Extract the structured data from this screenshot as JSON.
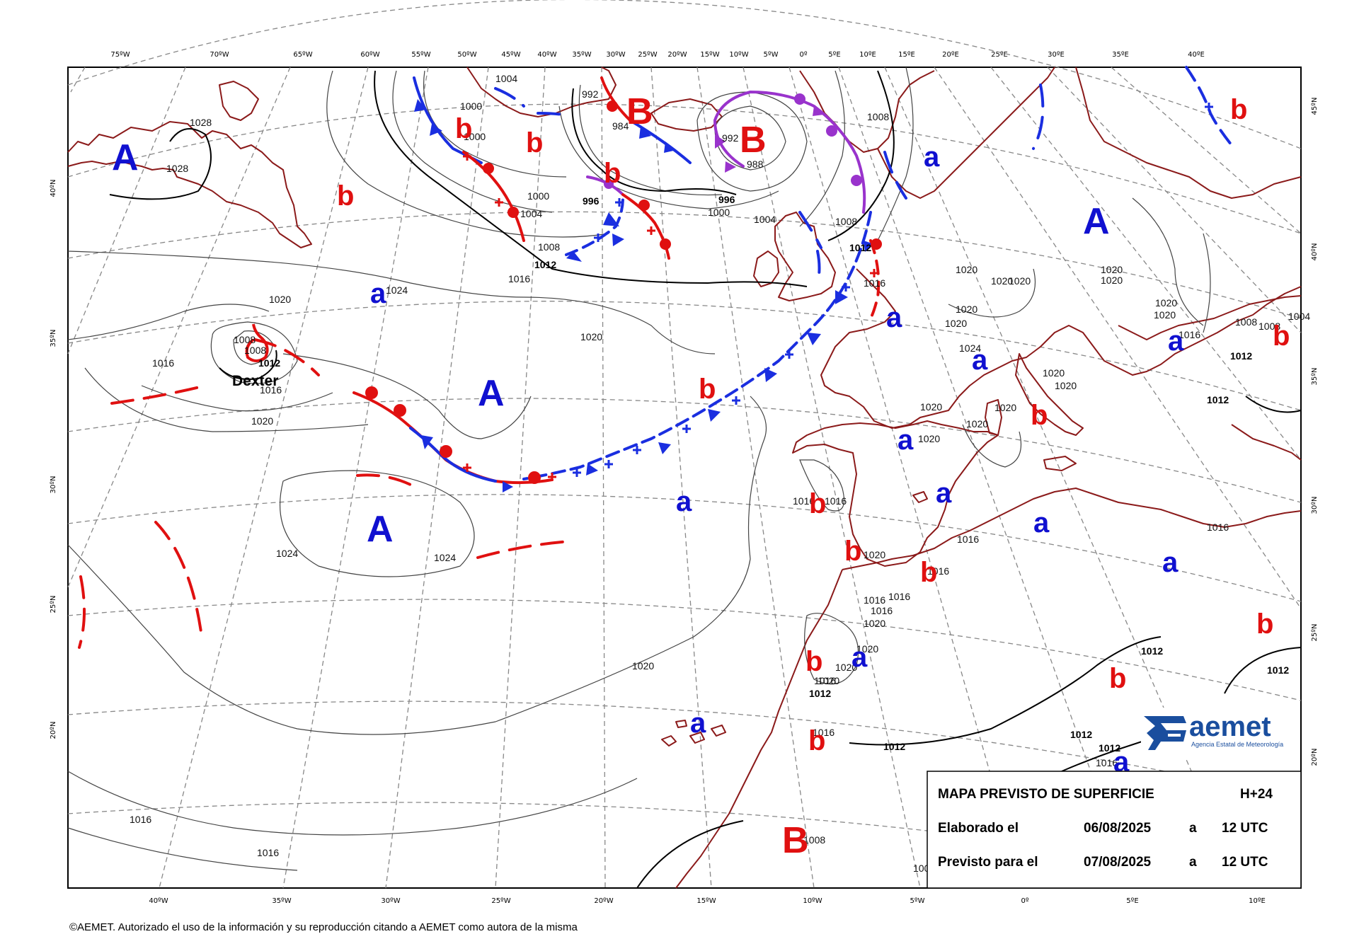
{
  "map": {
    "top_lon_labels": [
      "75ºW",
      "70ºW",
      "65ºW",
      "60ºW",
      "55ºW",
      "50ºW",
      "45ºW",
      "40ºW",
      "35ºW",
      "30ºW",
      "25ºW",
      "20ºW",
      "15ºW",
      "10ºW",
      "5ºW",
      "0º",
      "5ºE",
      "10ºE",
      "15ºE",
      "20ºE",
      "25ºE",
      "30ºE",
      "35ºE",
      "40ºE"
    ],
    "bottom_lon_labels": [
      "40ºW",
      "35ºW",
      "30ºW",
      "25ºW",
      "20ºW",
      "15ºW",
      "10ºW",
      "5ºW",
      "0º",
      "5ºE",
      "10ºE"
    ],
    "left_lat_labels": [
      "40ºN",
      "35ºN",
      "30ºN",
      "25ºN",
      "20ºN"
    ],
    "right_lat_labels": [
      "45ºN",
      "40ºN",
      "35ºN",
      "30ºN",
      "25ºN",
      "20ºN"
    ],
    "pressure_systems": [
      {
        "label": "A",
        "type": "high",
        "color": "#1010d0"
      },
      {
        "label": "A",
        "type": "high",
        "color": "#1010d0"
      },
      {
        "label": "A",
        "type": "high",
        "color": "#1010d0"
      },
      {
        "label": "A",
        "type": "high",
        "color": "#1010d0"
      },
      {
        "label": "B",
        "type": "low",
        "color": "#e01010"
      },
      {
        "label": "B",
        "type": "low",
        "color": "#e01010"
      },
      {
        "label": "B",
        "type": "low",
        "color": "#e01010"
      },
      {
        "label": "a",
        "type": "relative-high",
        "color": "#1010d0"
      },
      {
        "label": "b",
        "type": "relative-low",
        "color": "#e01010"
      }
    ],
    "small_highs": [
      "a",
      "a",
      "a",
      "a",
      "a",
      "a",
      "a",
      "a",
      "a",
      "a",
      "a",
      "a",
      "a"
    ],
    "small_lows": [
      "b",
      "b",
      "b",
      "b",
      "b",
      "b",
      "b",
      "b",
      "b",
      "b",
      "b",
      "b",
      "b",
      "b",
      "b",
      "b",
      "b",
      "b",
      "b"
    ],
    "storm_name": "Dexter",
    "isobar_labels": {
      "l1028": "1028",
      "l1024": "1024",
      "l1020": "1020",
      "l1016": "1016",
      "l1012": "1012",
      "l1008": "1008",
      "l1004": "1004",
      "l1000": "1000",
      "l996": "996",
      "l992": "992",
      "l988": "988",
      "l984": "984"
    }
  },
  "info_box": {
    "title": "MAPA PREVISTO DE SUPERFICIE",
    "step": "H+24",
    "made_label": "Elaborado el",
    "made_date": "06/08/2025",
    "at": "a",
    "made_time": "12 UTC",
    "valid_label": "Previsto para el",
    "valid_date": "07/08/2025",
    "valid_time": "12 UTC"
  },
  "logo": {
    "name": "aemet",
    "subtitle": "Agencia Estatal de Meteorología"
  },
  "copyright": "©AEMET. Autorizado el uso de la información y su reproducción citando a AEMET como autora de la misma",
  "colors": {
    "high": "#1010d0",
    "low": "#e01010",
    "occluded": "#9933cc",
    "coast": "#8b1a1a",
    "grid": "#888888",
    "logo": "#1a4e9e"
  }
}
